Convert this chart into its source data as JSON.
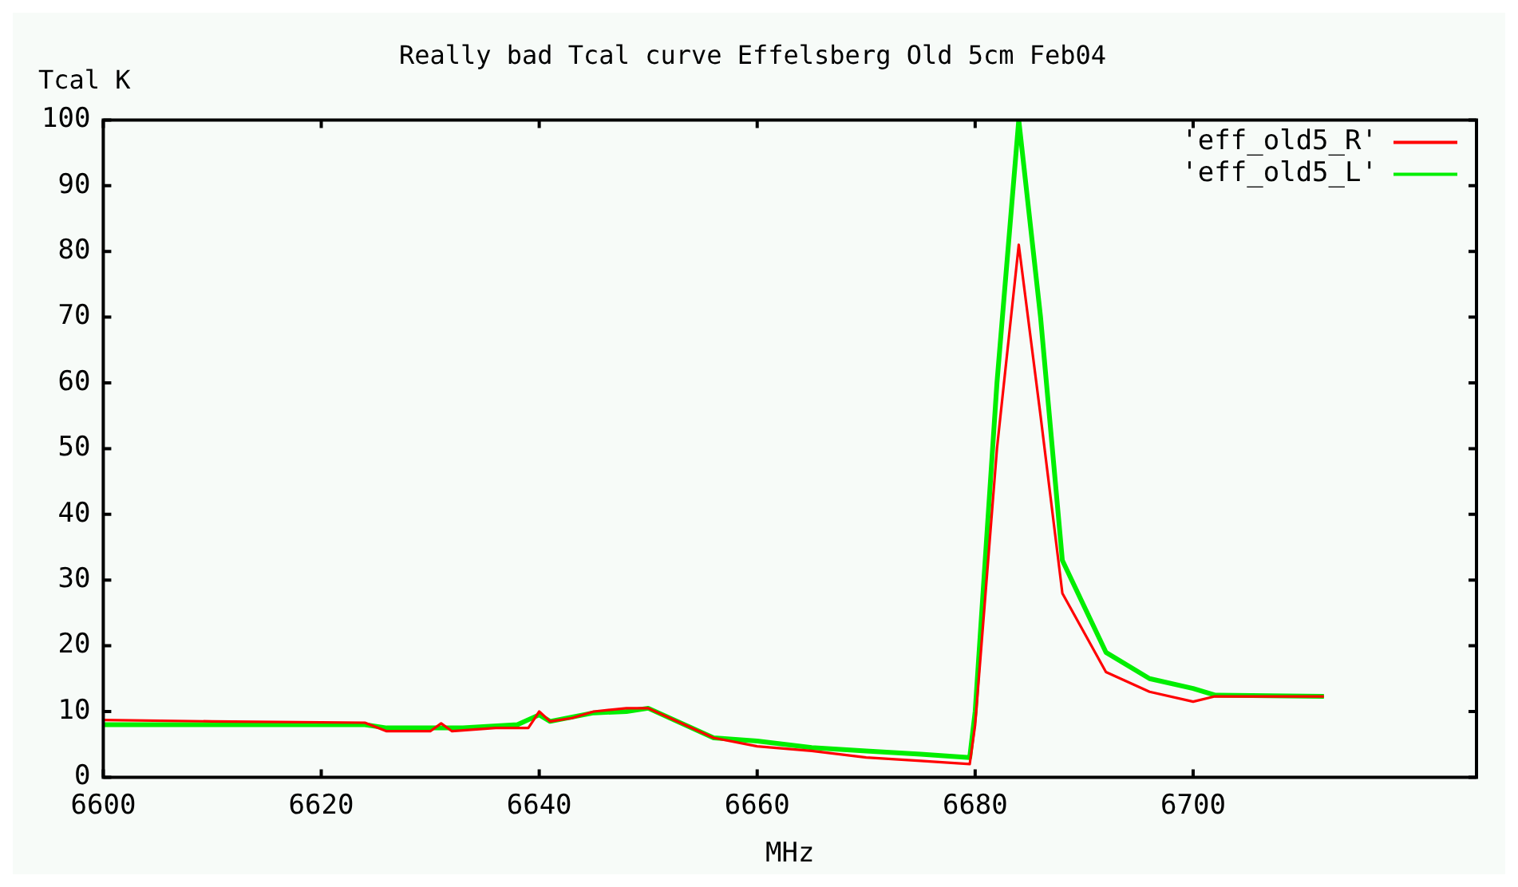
{
  "chart_data": {
    "type": "line",
    "title": "Really bad Tcal curve Effelsberg Old 5cm Feb04",
    "xlabel": "MHz",
    "ylabel": "Tcal K",
    "series": [
      {
        "name": "'eff_old5_R'",
        "color": "#ff0000",
        "x": [
          6600,
          6610,
          6624,
          6626,
          6630,
          6631,
          6632,
          6636,
          6639,
          6640,
          6641,
          6643,
          6645,
          6648,
          6650,
          6652,
          6656,
          6660,
          6665,
          6670,
          6675,
          6679.5,
          6680,
          6682,
          6684,
          6686,
          6688,
          6692,
          6696,
          6700,
          6702,
          6712
        ],
        "values": [
          8.7,
          8.5,
          8.3,
          7,
          7,
          8.2,
          7,
          7.5,
          7.5,
          10,
          8.5,
          9,
          10,
          10.5,
          10.5,
          9,
          6,
          4.7,
          4,
          3,
          2.5,
          2,
          8,
          50,
          81,
          55,
          28,
          16,
          13,
          11.5,
          12.3,
          12.3
        ]
      },
      {
        "name": "'eff_old5_L'",
        "color": "#00ee00",
        "x": [
          6600,
          6610,
          6624,
          6626,
          6630,
          6633,
          6638,
          6640,
          6641,
          6645,
          6648,
          6650,
          6656,
          6660,
          6665,
          6670,
          6675,
          6679.5,
          6680,
          6682,
          6684,
          6686,
          6688,
          6692,
          6696,
          6700,
          6702,
          6712
        ],
        "values": [
          8,
          8,
          8,
          7.5,
          7.5,
          7.5,
          8,
          9.5,
          8.5,
          9.8,
          10,
          10.5,
          6,
          5.5,
          4.5,
          4,
          3.5,
          3,
          10,
          60,
          100,
          70,
          33,
          19,
          15,
          13.5,
          12.5,
          12.3
        ]
      }
    ],
    "xlim": [
      6600,
      6726
    ],
    "xticks": [
      6600,
      6620,
      6640,
      6660,
      6680,
      6700
    ],
    "ylim": [
      0,
      100
    ],
    "yticks": [
      0,
      10,
      20,
      30,
      40,
      50,
      60,
      70,
      80,
      90,
      100
    ],
    "grid": false,
    "legend": "top right",
    "marker": "none",
    "line_style": "solid"
  }
}
